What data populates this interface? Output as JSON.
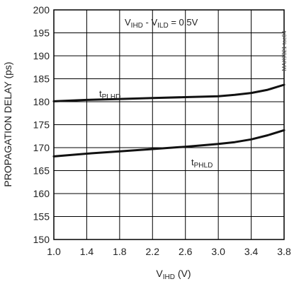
{
  "chart_data": {
    "type": "line",
    "title": "",
    "xlabel": {
      "main": "V",
      "sub": "IHD",
      "tail": " (V)"
    },
    "ylabel": "PROPAGATION DELAY (ps)",
    "xlim": [
      1.0,
      3.8
    ],
    "ylim": [
      150,
      200
    ],
    "x_ticks": [
      "1.0",
      "1.4",
      "1.8",
      "2.2",
      "2.6",
      "3.0",
      "3.4",
      "3.8"
    ],
    "y_ticks": [
      "200",
      "195",
      "190",
      "185",
      "180",
      "175",
      "170",
      "165",
      "160",
      "155",
      "150"
    ],
    "grid": true,
    "condition": {
      "a_main": "V",
      "a_sub": "IHD",
      "sep": " - ",
      "b_main": "V",
      "b_sub": "ILD",
      "tail": " = 0.5V"
    },
    "side_label": "MAX9321 toc04",
    "series": [
      {
        "name": {
          "main": "t",
          "sub": "PLHD"
        },
        "x": [
          1.0,
          1.4,
          1.8,
          2.2,
          2.6,
          3.0,
          3.2,
          3.4,
          3.6,
          3.8
        ],
        "y": [
          180.1,
          180.4,
          180.6,
          180.8,
          181.0,
          181.2,
          181.5,
          181.9,
          182.6,
          183.7
        ]
      },
      {
        "name": {
          "main": "t",
          "sub": "PHLD"
        },
        "x": [
          1.0,
          1.4,
          1.8,
          2.2,
          2.6,
          3.0,
          3.2,
          3.4,
          3.6,
          3.8
        ],
        "y": [
          168.1,
          168.7,
          169.2,
          169.7,
          170.2,
          170.8,
          171.2,
          171.8,
          172.7,
          173.8
        ]
      }
    ]
  }
}
